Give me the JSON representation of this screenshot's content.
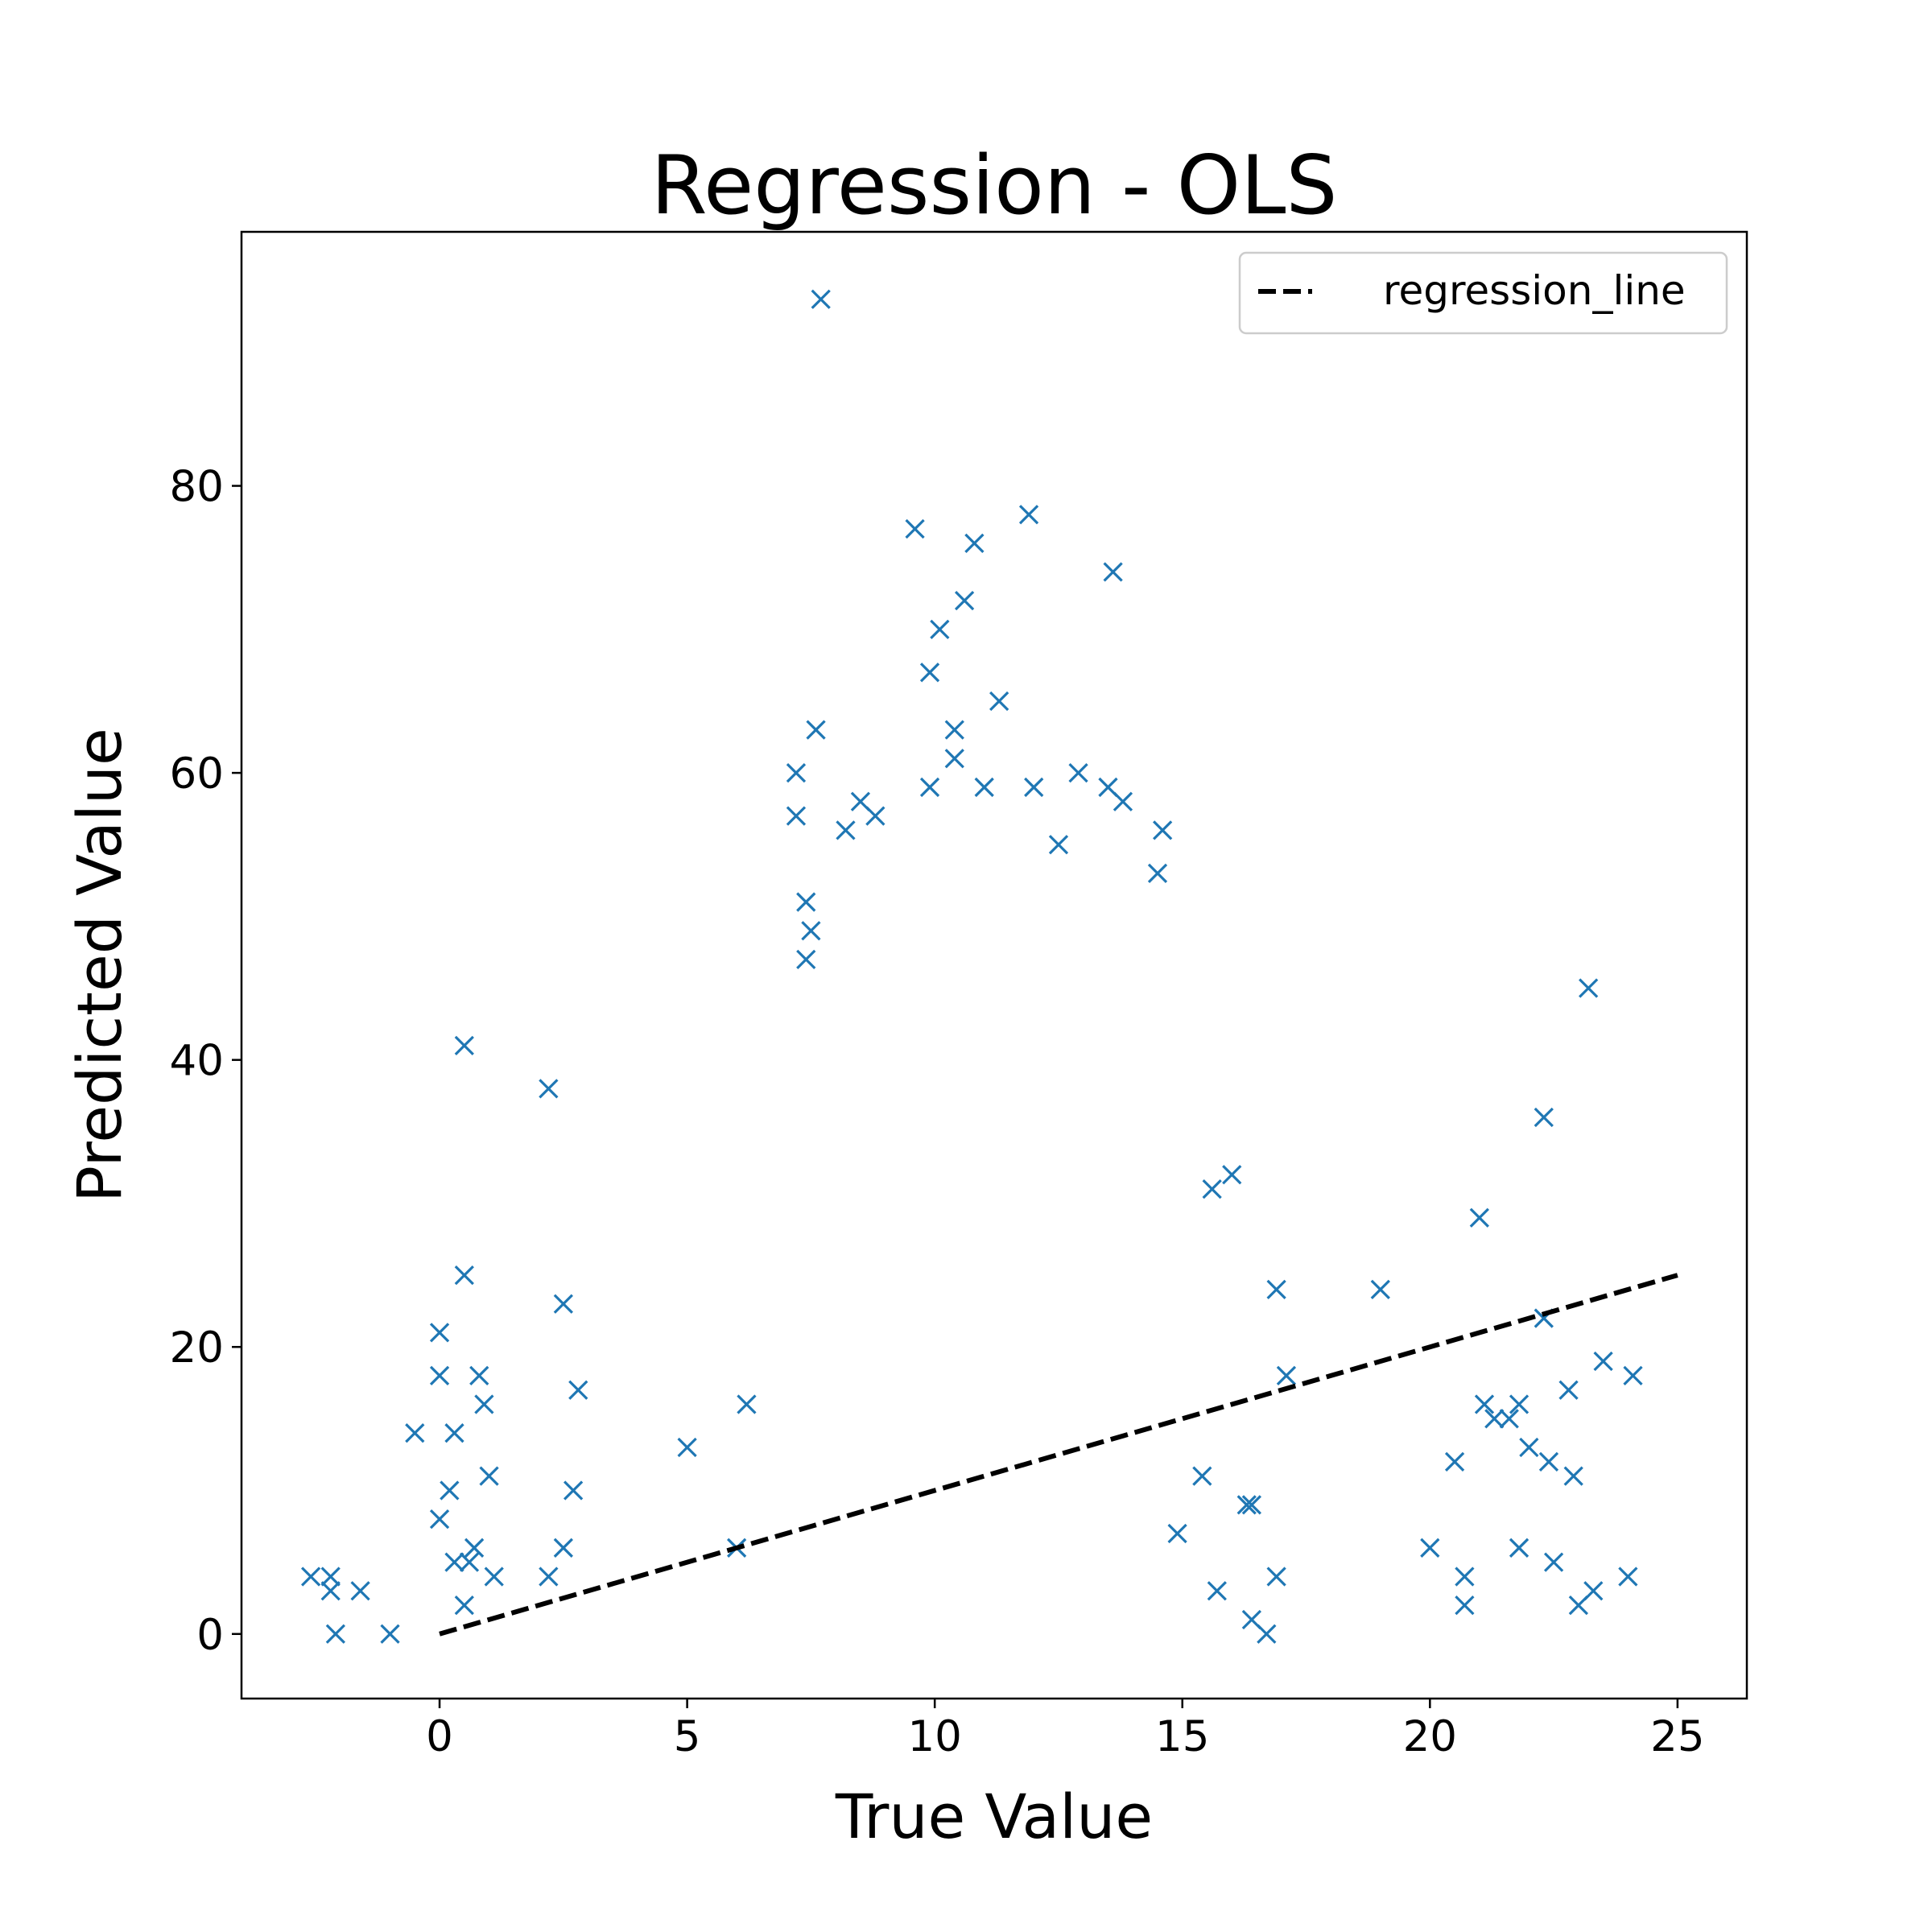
{
  "chart_data": {
    "type": "scatter",
    "title": "Regression - OLS",
    "xlabel": "True Value",
    "ylabel": "Predicted Value",
    "xlim": [
      -4,
      26.4
    ],
    "ylim": [
      -4.5,
      97.7
    ],
    "xticks": [
      0,
      5,
      10,
      15,
      20,
      25
    ],
    "yticks": [
      0,
      20,
      40,
      60,
      80
    ],
    "grid": false,
    "legend": {
      "position": "upper-right",
      "entries": [
        "regression_line"
      ]
    },
    "colors": {
      "points": "#1f77b4",
      "line": "#000000"
    },
    "marker": "x",
    "dense_cluster_note": "",
    "series": [
      {
        "name": "",
        "kind": "scatter",
        "x": [
          7.7,
          9.6,
          10.8,
          11.9,
          13.6,
          10.6,
          10.1,
          9.9,
          11.3,
          7.6,
          10.4,
          10.4,
          7.2,
          11.0,
          12.0,
          12.9,
          13.5,
          13.8,
          8.5,
          8.8,
          7.2,
          8.2,
          9.9,
          12.5,
          14.5,
          14.6,
          7.4,
          7.5,
          7.4,
          23.2,
          22.3,
          21.0,
          19.0,
          0.5,
          2.2,
          0.5,
          2.5,
          0.0,
          0.0,
          0.8,
          0.3,
          0.2,
          1.0,
          5.0,
          6.2,
          6.0,
          16.0,
          17.1,
          16.9,
          15.6,
          23.5,
          24.1,
          22.8,
          20.5,
          21.1,
          21.3,
          21.6,
          21.8,
          22.0,
          22.4,
          22.3,
          22.9,
          20.0,
          20.7,
          20.7,
          21.8,
          22.5,
          23.0,
          23.3,
          24.0,
          -2.6,
          -2.2,
          -2.1,
          -1.6,
          -1.0,
          -2.2,
          0.5,
          0.7,
          2.2,
          2.5,
          2.7,
          2.8,
          0.9,
          1.1,
          0.0,
          -0.5,
          0.3,
          0.6,
          16.4,
          16.9,
          16.4,
          16.7,
          16.3,
          15.7,
          14.9,
          15.4
        ],
        "y": [
          93,
          77,
          76,
          78,
          74,
          72,
          70,
          67,
          65,
          63,
          63,
          61,
          60,
          59,
          59,
          60,
          59,
          58,
          58,
          57,
          57,
          56,
          59,
          55,
          53,
          56,
          51,
          49,
          47,
          45,
          36,
          29,
          24,
          41,
          38,
          25,
          23,
          21,
          18,
          18,
          14,
          10,
          11,
          13,
          16,
          6,
          32,
          18,
          24,
          31,
          19,
          18,
          17,
          12,
          16,
          15,
          15,
          16,
          13,
          12,
          22,
          11,
          6,
          4,
          2,
          6,
          5,
          2,
          3,
          4,
          4,
          4,
          0,
          3,
          0,
          3,
          2,
          6,
          4,
          6,
          10,
          17,
          16,
          4,
          8,
          14,
          5,
          5,
          9,
          4,
          1,
          0,
          9,
          3,
          7,
          11
        ]
      },
      {
        "name": "regression_line",
        "kind": "line",
        "style": "dashed",
        "x": [
          0,
          25
        ],
        "y": [
          0,
          25
        ]
      }
    ]
  }
}
